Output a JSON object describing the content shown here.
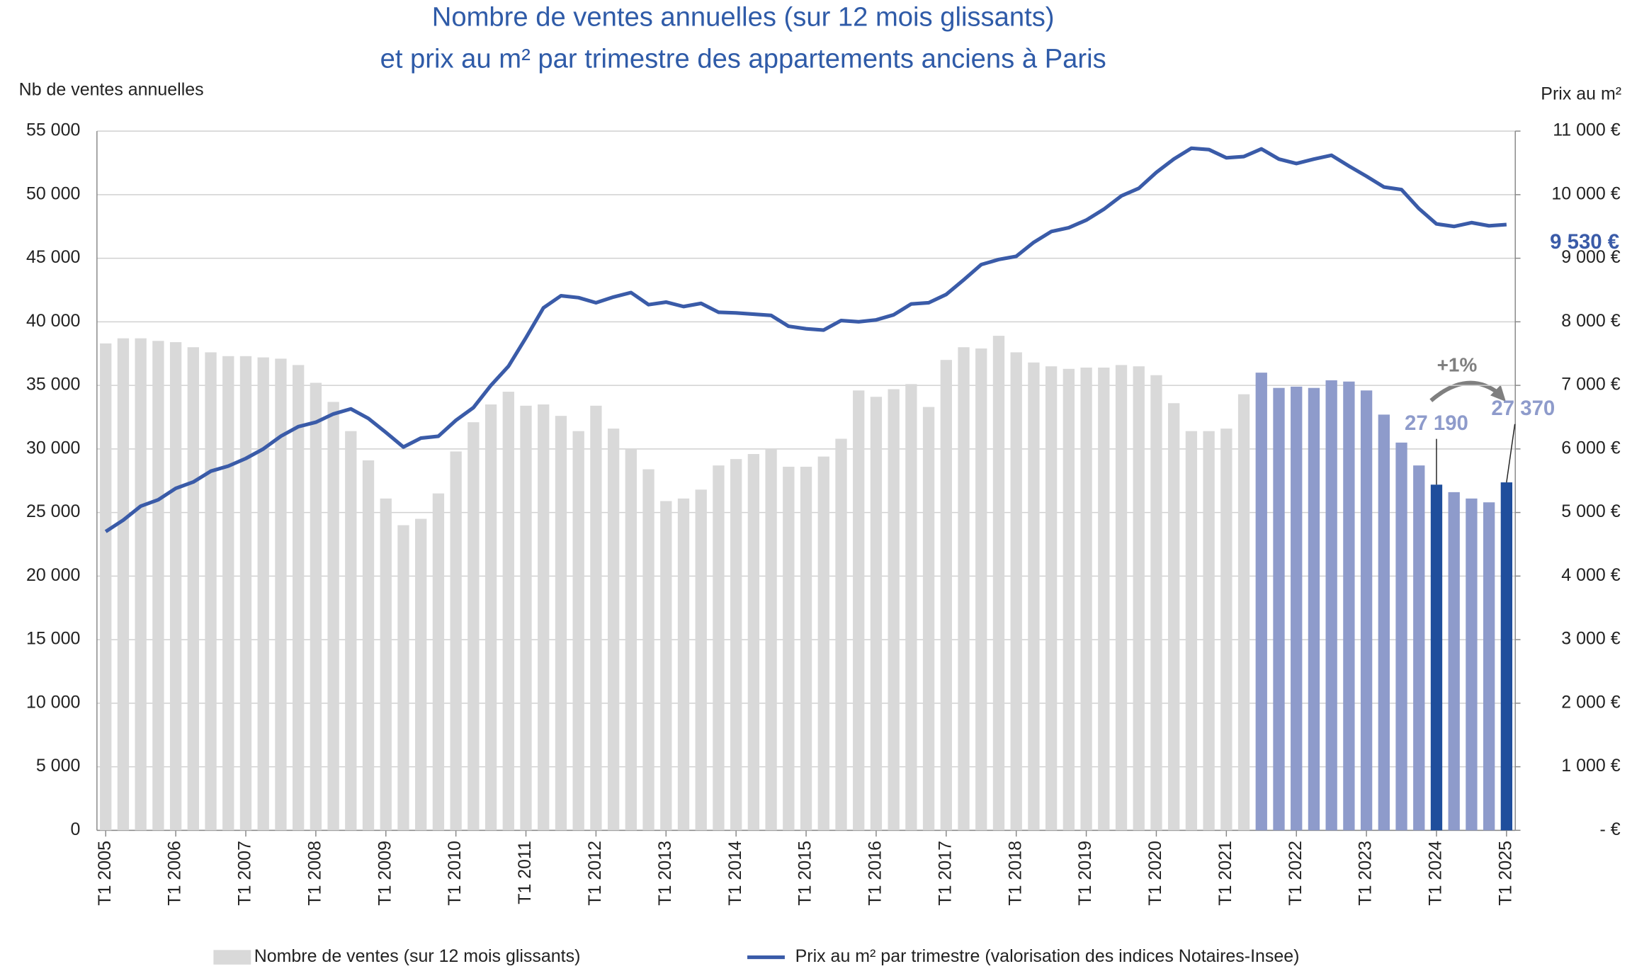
{
  "chart_data": {
    "type": "bar-line",
    "title": [
      "Nombre de ventes annuelles  (sur 12 mois glissants)",
      "et prix au m² par trimestre des appartements anciens à Paris"
    ],
    "y_label": "Nb de ventes annuelles",
    "y2_label": "Prix au m²",
    "annotation": "+1%",
    "categories": [
      "T1 2005",
      null,
      null,
      null,
      "T1 2006",
      null,
      null,
      null,
      "T1 2007",
      null,
      null,
      null,
      "T1 2008",
      null,
      null,
      null,
      "T1 2009",
      null,
      null,
      null,
      "T1 2010",
      null,
      null,
      null,
      "T1 2011",
      null,
      null,
      null,
      "T1 2012",
      null,
      null,
      null,
      "T1 2013",
      null,
      null,
      null,
      "T1 2014",
      null,
      null,
      null,
      "T1 2015",
      null,
      null,
      null,
      "T1 2016",
      null,
      null,
      null,
      "T1 2017",
      null,
      null,
      null,
      "T1 2018",
      null,
      null,
      null,
      "T1 2019",
      null,
      null,
      null,
      "T1 2020",
      null,
      null,
      null,
      "T1 2021",
      null,
      null,
      null,
      "T1 2022",
      null,
      null,
      null,
      "T1 2023",
      null,
      null,
      null,
      "T1 2024",
      null,
      null,
      null,
      "T1 2025"
    ],
    "ylim": [
      0,
      55000
    ],
    "yticks": [
      0,
      {
        "value": 5000,
        "label": "5 000"
      },
      {
        "value": 10000,
        "label": "10 000"
      },
      {
        "value": 15000,
        "label": "15 000"
      },
      {
        "value": 20000,
        "label": "20 000"
      },
      {
        "value": 25000,
        "label": "25 000"
      },
      {
        "value": 30000,
        "label": "30 000"
      },
      {
        "value": 35000,
        "label": "35 000"
      },
      {
        "value": 40000,
        "label": "40 000"
      },
      {
        "value": 45000,
        "label": "45 000"
      },
      {
        "value": 50000,
        "label": "50 000"
      },
      {
        "value": 55000,
        "label": "55 000"
      }
    ],
    "y2lim": [
      0,
      11000
    ],
    "y2ticks": [
      {
        "value": 0,
        "label": "-  €"
      },
      {
        "value": 1000,
        "label": "1 000 €"
      },
      {
        "value": 2000,
        "label": "2 000 €"
      },
      {
        "value": 3000,
        "label": "3 000 €"
      },
      {
        "value": 4000,
        "label": "4 000 €"
      },
      {
        "value": 5000,
        "label": "5 000 €"
      },
      {
        "value": 6000,
        "label": "6 000 €"
      },
      {
        "value": 7000,
        "label": "7 000 €"
      },
      {
        "value": 8000,
        "label": "8 000 €"
      },
      {
        "value": 9000,
        "label": "9 000 €"
      },
      {
        "value": 10000,
        "label": "10 000 €"
      },
      {
        "value": 11000,
        "label": "11 000 €"
      }
    ],
    "grid": true,
    "series": [
      {
        "name": "Nombre de ventes (sur 12 mois glissants)",
        "type": "bar",
        "color": "#d9d9d9",
        "colors": [
          "#d9d9d9",
          "#d9d9d9",
          "#d9d9d9",
          "#d9d9d9",
          "#d9d9d9",
          "#d9d9d9",
          "#d9d9d9",
          "#d9d9d9",
          "#d9d9d9",
          "#d9d9d9",
          "#d9d9d9",
          "#d9d9d9",
          "#d9d9d9",
          "#d9d9d9",
          "#d9d9d9",
          "#d9d9d9",
          "#d9d9d9",
          "#d9d9d9",
          "#d9d9d9",
          "#d9d9d9",
          "#d9d9d9",
          "#d9d9d9",
          "#d9d9d9",
          "#d9d9d9",
          "#d9d9d9",
          "#d9d9d9",
          "#d9d9d9",
          "#d9d9d9",
          "#d9d9d9",
          "#d9d9d9",
          "#d9d9d9",
          "#d9d9d9",
          "#d9d9d9",
          "#d9d9d9",
          "#d9d9d9",
          "#d9d9d9",
          "#d9d9d9",
          "#d9d9d9",
          "#d9d9d9",
          "#d9d9d9",
          "#d9d9d9",
          "#d9d9d9",
          "#d9d9d9",
          "#d9d9d9",
          "#d9d9d9",
          "#d9d9d9",
          "#d9d9d9",
          "#d9d9d9",
          "#d9d9d9",
          "#d9d9d9",
          "#d9d9d9",
          "#d9d9d9",
          "#d9d9d9",
          "#d9d9d9",
          "#d9d9d9",
          "#d9d9d9",
          "#d9d9d9",
          "#d9d9d9",
          "#d9d9d9",
          "#d9d9d9",
          "#d9d9d9",
          "#d9d9d9",
          "#d9d9d9",
          "#d9d9d9",
          "#d9d9d9",
          "#d9d9d9",
          "#8e9bcb",
          "#8e9bcb",
          "#8e9bcb",
          "#8e9bcb",
          "#8e9bcb",
          "#8e9bcb",
          "#8e9bcb",
          "#8e9bcb",
          "#8e9bcb",
          "#8e9bcb",
          "#1f4e9c",
          "#8e9bcb",
          "#8e9bcb",
          "#8e9bcb",
          "#1f4e9c"
        ],
        "values": [
          38300,
          38700,
          38700,
          38500,
          38400,
          38000,
          37600,
          37300,
          37300,
          37200,
          37100,
          36600,
          35200,
          33700,
          31400,
          29100,
          26100,
          24000,
          24500,
          26500,
          29800,
          32100,
          33500,
          34500,
          33400,
          33500,
          32600,
          31400,
          33400,
          31600,
          30000,
          28400,
          25900,
          26100,
          26800,
          28700,
          29200,
          29600,
          30000,
          28600,
          28600,
          29400,
          30800,
          34600,
          34100,
          34700,
          35100,
          33300,
          37000,
          38000,
          37900,
          38900,
          37600,
          36800,
          36500,
          36300,
          36400,
          36400,
          36600,
          36500,
          35800,
          33600,
          31400,
          31400,
          31600,
          34300,
          36000,
          34800,
          34900,
          34800,
          35400,
          35300,
          34600,
          32700,
          30500,
          28700,
          27190,
          26600,
          26100,
          25800,
          27370
        ],
        "value_labels": [
          null,
          null,
          null,
          null,
          null,
          null,
          null,
          null,
          null,
          null,
          null,
          null,
          null,
          null,
          null,
          null,
          null,
          null,
          null,
          null,
          null,
          null,
          null,
          null,
          null,
          null,
          null,
          null,
          null,
          null,
          null,
          null,
          null,
          null,
          null,
          null,
          null,
          null,
          null,
          null,
          null,
          null,
          null,
          null,
          null,
          null,
          null,
          null,
          null,
          null,
          null,
          null,
          null,
          null,
          null,
          null,
          null,
          null,
          null,
          null,
          null,
          null,
          null,
          null,
          null,
          null,
          null,
          null,
          null,
          null,
          null,
          null,
          null,
          null,
          null,
          null,
          "27 190",
          null,
          null,
          null,
          "27 370"
        ]
      },
      {
        "name": "Prix au m² par trimestre (valorisation des indices Notaires-Insee)",
        "type": "line",
        "axis": "y2",
        "color": "#3a5ba8",
        "values": [
          4700,
          4880,
          5100,
          5200,
          5380,
          5480,
          5650,
          5730,
          5850,
          6000,
          6200,
          6350,
          6420,
          6550,
          6630,
          6480,
          6260,
          6030,
          6170,
          6200,
          6450,
          6650,
          7000,
          7300,
          7750,
          8220,
          8410,
          8380,
          8300,
          8390,
          8460,
          8270,
          8310,
          8240,
          8290,
          8150,
          8140,
          8120,
          8100,
          7930,
          7890,
          7870,
          8020,
          8000,
          8030,
          8110,
          8280,
          8300,
          8430,
          8660,
          8900,
          8980,
          9030,
          9250,
          9420,
          9480,
          9600,
          9770,
          9980,
          10100,
          10350,
          10560,
          10730,
          10710,
          10580,
          10600,
          10720,
          10560,
          10490,
          10560,
          10620,
          10450,
          10290,
          10120,
          10080,
          9780,
          9540,
          9500,
          9560,
          9510,
          9530
        ],
        "value_labels": [
          null,
          null,
          null,
          null,
          null,
          null,
          null,
          null,
          null,
          null,
          null,
          null,
          null,
          null,
          null,
          null,
          null,
          null,
          null,
          null,
          null,
          null,
          null,
          null,
          null,
          null,
          null,
          null,
          null,
          null,
          null,
          null,
          null,
          null,
          null,
          null,
          null,
          null,
          null,
          null,
          null,
          null,
          null,
          null,
          null,
          null,
          null,
          null,
          null,
          null,
          null,
          null,
          null,
          null,
          null,
          null,
          null,
          null,
          null,
          null,
          null,
          null,
          null,
          null,
          null,
          null,
          null,
          null,
          null,
          null,
          null,
          null,
          null,
          null,
          null,
          null,
          null,
          null,
          null,
          null,
          "9 530 €"
        ]
      }
    ]
  }
}
